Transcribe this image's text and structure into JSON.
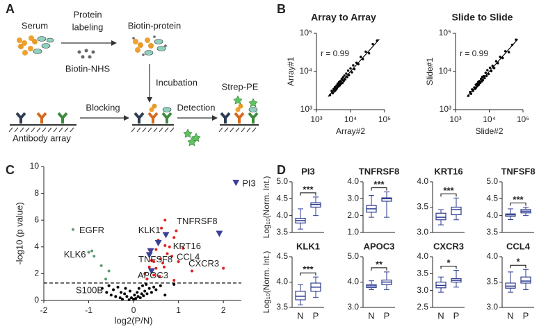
{
  "panel_labels": [
    "A",
    "B",
    "C",
    "D"
  ],
  "diagram": {
    "serum": "Serum",
    "labeling": [
      "Protein",
      "labeling"
    ],
    "reagent": "Biotin-NHS",
    "biotin_protein": "Biotin-protein",
    "incubation": "Incubation",
    "blocking": "Blocking",
    "detection": "Detection",
    "strep_pe": "Strep-PE",
    "array": "Antibody array"
  },
  "chart_data": [
    {
      "type": "scatter",
      "title": "Array to Array",
      "xlabel": "Array#2",
      "ylabel": "Array#1",
      "annotation": "r = 0.99",
      "log_scale": true,
      "xlim": [
        1000,
        100000
      ],
      "ylim": [
        1000,
        100000
      ],
      "xticks": [
        {
          "value": 1000,
          "label": "10³"
        },
        {
          "value": 10000,
          "label": "10⁴"
        },
        {
          "value": 100000,
          "label": "10⁵"
        }
      ],
      "yticks": [
        {
          "value": 1000,
          "label": "10³"
        },
        {
          "value": 10000,
          "label": "10⁴"
        },
        {
          "value": 100000,
          "label": "10⁵"
        }
      ],
      "series": [
        {
          "color": "#000000",
          "x": [
            2500,
            2800,
            3000,
            3200,
            3400,
            3500,
            3700,
            3900,
            4000,
            4200,
            4400,
            4600,
            4800,
            5000,
            5200,
            5500,
            5800,
            6000,
            6300,
            6600,
            7000,
            7500,
            8000,
            8500,
            9000,
            10000,
            11000,
            12000,
            13000,
            15000,
            17000,
            20000,
            23000,
            28000,
            35000,
            45000,
            60000
          ],
          "values": [
            2400,
            3100,
            2700,
            3500,
            3000,
            3900,
            3300,
            4300,
            3600,
            4800,
            4000,
            5200,
            4300,
            5600,
            4700,
            6300,
            5000,
            7000,
            5600,
            7800,
            6200,
            8800,
            7100,
            10500,
            8000,
            12000,
            9500,
            14500,
            11500,
            17000,
            15500,
            24000,
            21000,
            33000,
            30000,
            52000,
            65000
          ]
        }
      ],
      "fit": {
        "x": [
          2200,
          70000
        ],
        "values": [
          2200,
          70000
        ]
      }
    },
    {
      "type": "scatter",
      "title": "Slide to Slide",
      "xlabel": "Slide#2",
      "ylabel": "Slide#1",
      "annotation": "r = 0.99",
      "log_scale": true,
      "xlim": [
        1000,
        100000
      ],
      "ylim": [
        1000,
        100000
      ],
      "xticks": [
        {
          "value": 1000,
          "label": "10³"
        },
        {
          "value": 10000,
          "label": "10⁴"
        },
        {
          "value": 100000,
          "label": "10⁵"
        }
      ],
      "yticks": [
        {
          "value": 1000,
          "label": "10³"
        },
        {
          "value": 10000,
          "label": "10⁴"
        },
        {
          "value": 100000,
          "label": "10⁵"
        }
      ],
      "series": [
        {
          "color": "#000000",
          "x": [
            2400,
            2700,
            2900,
            3100,
            3300,
            3600,
            3800,
            4000,
            4100,
            4300,
            4500,
            4700,
            4900,
            5100,
            5400,
            5700,
            6000,
            6200,
            6500,
            6900,
            7300,
            7800,
            8300,
            8800,
            9500,
            10500,
            11500,
            12500,
            14000,
            16000,
            18000,
            21000,
            25000,
            30000,
            38000,
            48000,
            62000
          ],
          "values": [
            2300,
            2900,
            2600,
            3400,
            3100,
            3800,
            3500,
            4500,
            3800,
            4700,
            4200,
            5300,
            4500,
            5600,
            5000,
            6400,
            5500,
            7200,
            5900,
            7600,
            6700,
            9200,
            7600,
            10800,
            8600,
            12500,
            10200,
            14000,
            12200,
            18500,
            16500,
            24000,
            22500,
            34000,
            32000,
            50000,
            68000
          ]
        }
      ],
      "fit": {
        "x": [
          2200,
          70000
        ],
        "values": [
          2200,
          70000
        ]
      }
    },
    {
      "type": "volcano",
      "xlabel": "log2(P/N)",
      "ylabel": "-log10 (p value)",
      "xlim": [
        -2,
        2.4
      ],
      "ylim": [
        0,
        10
      ],
      "xticks": [
        -2,
        -1,
        0,
        1,
        2
      ],
      "yticks": [
        0,
        2,
        4,
        6,
        8,
        10
      ],
      "threshold": 1.3,
      "series": [
        {
          "color": "#000000",
          "marker": "circle",
          "x": [
            -0.7,
            -0.6,
            -0.55,
            -0.5,
            -0.45,
            -0.4,
            -0.35,
            -0.3,
            -0.28,
            -0.25,
            -0.2,
            -0.18,
            -0.15,
            -0.1,
            -0.08,
            -0.05,
            0,
            0.02,
            0.05,
            0.08,
            0.1,
            0.12,
            0.15,
            0.18,
            0.2,
            0.22,
            0.25,
            0.28,
            0.3,
            0.35,
            0.4,
            0.45,
            0.5,
            0.6,
            0.7,
            0.9
          ],
          "values": [
            0.9,
            0.6,
            1.1,
            0.4,
            0.8,
            0.3,
            1.0,
            0.2,
            0.6,
            0.1,
            0.5,
            0.9,
            0.3,
            0.05,
            0.7,
            0.2,
            0.1,
            0.4,
            0.15,
            0.6,
            0.3,
            0.9,
            0.2,
            0.5,
            1.1,
            0.35,
            0.7,
            1.2,
            0.5,
            0.9,
            0.6,
            1.0,
            0.8,
            1.1,
            0.4,
            1.2
          ]
        },
        {
          "color": "#5f9a6e",
          "marker": "circle",
          "x": [
            -1.35,
            -1.0,
            -0.93,
            -0.88,
            -0.62,
            -0.55,
            -0.72
          ],
          "values": [
            5.3,
            3.6,
            3.7,
            3.3,
            1.6,
            2.2,
            2.6
          ],
          "labels": [
            "EGFR",
            "KLK6",
            null,
            null,
            "S100B",
            null,
            null
          ]
        },
        {
          "color": "#e0201e",
          "marker": "circle",
          "x": [
            0.8,
            0.85,
            2.0,
            0.3,
            0.35,
            0.4,
            0.45,
            0.5,
            0.5,
            0.55,
            0.6,
            0.62,
            0.65,
            0.7,
            0.7,
            0.75,
            0.9,
            0.95,
            1.0,
            1.1,
            1.3,
            0.35,
            0.45,
            0.58,
            0.68,
            0.25,
            0.9
          ],
          "values": [
            4.0,
            3.3,
            2.4,
            1.6,
            2.5,
            3.0,
            1.9,
            3.8,
            2.4,
            4.5,
            3.1,
            5.4,
            2.8,
            4.1,
            6.0,
            3.5,
            4.7,
            5.2,
            2.9,
            3.9,
            2.2,
            3.8,
            2.9,
            1.8,
            2.5,
            2.0,
            1.5
          ],
          "labels": [
            "KRT16",
            "CCL4",
            "CXCR3",
            null,
            null,
            null,
            null,
            null,
            null,
            null,
            null,
            null,
            null,
            null,
            null,
            null,
            null,
            null,
            null,
            null,
            null,
            null,
            null,
            null,
            null,
            null,
            null
          ]
        },
        {
          "color": "#3b3f96",
          "marker": "triangle",
          "x": [
            2.28,
            1.91,
            0.72,
            0.38,
            0.35,
            0.4,
            0.55
          ],
          "values": [
            8.8,
            5.0,
            4.9,
            3.7,
            3.4,
            2.2,
            4.3
          ],
          "labels": [
            "PI3",
            "TNFRSF8",
            "KLK1",
            "TNFSF8",
            null,
            "APOC3",
            null
          ]
        }
      ]
    },
    {
      "type": "box",
      "title": "PI3",
      "ylabel": "Log₁₀(Norm. Int.)",
      "color": "#2b3a8f",
      "significance": "***",
      "ylim": [
        3.5,
        5.0
      ],
      "yticks": [
        3.5,
        {
          "value": 4,
          "label": "4.0"
        },
        4.5,
        {
          "value": 5,
          "label": "5.0"
        }
      ],
      "boxes": [
        {
          "min": 3.6,
          "q1": 3.78,
          "median": 3.85,
          "q3": 3.92,
          "max": 4.2
        },
        {
          "min": 4.0,
          "q1": 4.25,
          "median": 4.33,
          "q3": 4.38,
          "max": 4.55
        }
      ]
    },
    {
      "type": "box",
      "title": "TNFRSF8",
      "color": "#2b3a8f",
      "significance": "***",
      "ylim": [
        1.0,
        4.0
      ],
      "yticks": [
        {
          "value": 1,
          "label": "1.0"
        },
        {
          "value": 2,
          "label": "2.0"
        },
        {
          "value": 3,
          "label": "3.0"
        },
        {
          "value": 4,
          "label": "4.0"
        }
      ],
      "boxes": [
        {
          "min": 1.9,
          "q1": 2.2,
          "median": 2.4,
          "q3": 2.6,
          "max": 3.2
        },
        {
          "min": 1.9,
          "q1": 2.85,
          "median": 3.0,
          "q3": 3.05,
          "max": 3.4
        }
      ]
    },
    {
      "type": "box",
      "title": "KRT16",
      "color": "#2b3a8f",
      "significance": "***",
      "ylim": [
        3.0,
        4.0
      ],
      "yticks": [
        {
          "value": 3,
          "label": "3.0"
        },
        3.5,
        {
          "value": 4,
          "label": "4.0"
        }
      ],
      "boxes": [
        {
          "min": 3.15,
          "q1": 3.25,
          "median": 3.3,
          "q3": 3.38,
          "max": 3.45
        },
        {
          "min": 3.25,
          "q1": 3.35,
          "median": 3.45,
          "q3": 3.5,
          "max": 3.68
        }
      ]
    },
    {
      "type": "box",
      "title": "TNFSF8",
      "color": "#2b3a8f",
      "significance": "***",
      "ylim": [
        3.5,
        5.0
      ],
      "yticks": [
        3.5,
        {
          "value": 4,
          "label": "4.0"
        },
        4.5,
        {
          "value": 5,
          "label": "5.0"
        }
      ],
      "boxes": [
        {
          "min": 3.88,
          "q1": 3.98,
          "median": 4.02,
          "q3": 4.05,
          "max": 4.2
        },
        {
          "min": 4.0,
          "q1": 4.08,
          "median": 4.13,
          "q3": 4.18,
          "max": 4.25
        }
      ]
    },
    {
      "type": "box",
      "title": "KLK1",
      "ylabel": "Log₁₀(Norm. Int.)",
      "categories": [
        "N",
        "P"
      ],
      "color": "#2b3a8f",
      "significance": "***",
      "ylim": [
        3.5,
        4.5
      ],
      "yticks": [
        3.5,
        {
          "value": 4,
          "label": "4.0"
        },
        4.5
      ],
      "boxes": [
        {
          "min": 3.55,
          "q1": 3.65,
          "median": 3.72,
          "q3": 3.82,
          "max": 3.95
        },
        {
          "min": 3.7,
          "q1": 3.82,
          "median": 3.9,
          "q3": 3.98,
          "max": 4.1
        }
      ]
    },
    {
      "type": "box",
      "title": "APOC3",
      "categories": [
        "N",
        "P"
      ],
      "color": "#2b3a8f",
      "significance": "**",
      "ylim": [
        3.0,
        5.0
      ],
      "yticks": [
        {
          "value": 3,
          "label": "3.0"
        },
        {
          "value": 4,
          "label": "4.0"
        },
        {
          "value": 5,
          "label": "5.0"
        }
      ],
      "boxes": [
        {
          "min": 3.7,
          "q1": 3.78,
          "median": 3.85,
          "q3": 3.9,
          "max": 4.05
        },
        {
          "min": 3.7,
          "q1": 3.9,
          "median": 4.0,
          "q3": 4.08,
          "max": 4.4
        }
      ]
    },
    {
      "type": "box",
      "title": "CXCR3",
      "categories": [
        "N",
        "P"
      ],
      "color": "#2b3a8f",
      "significance": "*",
      "ylim": [
        2.5,
        4.0
      ],
      "yticks": [
        2.5,
        {
          "value": 3,
          "label": "3.0"
        },
        3.5,
        {
          "value": 4,
          "label": "4.0"
        }
      ],
      "boxes": [
        {
          "min": 2.95,
          "q1": 3.08,
          "median": 3.15,
          "q3": 3.25,
          "max": 3.4
        },
        {
          "min": 3.1,
          "q1": 3.25,
          "median": 3.3,
          "q3": 3.35,
          "max": 3.6
        }
      ]
    },
    {
      "type": "box",
      "title": "CCL4",
      "categories": [
        "N",
        "P"
      ],
      "color": "#2b3a8f",
      "significance": "*",
      "ylim": [
        3.0,
        4.0
      ],
      "yticks": [
        {
          "value": 3,
          "label": "3.0"
        },
        3.5,
        {
          "value": 4,
          "label": "4.0"
        }
      ],
      "boxes": [
        {
          "min": 3.3,
          "q1": 3.38,
          "median": 3.42,
          "q3": 3.48,
          "max": 3.7
        },
        {
          "min": 3.35,
          "q1": 3.48,
          "median": 3.52,
          "q3": 3.6,
          "max": 3.75
        }
      ]
    }
  ]
}
